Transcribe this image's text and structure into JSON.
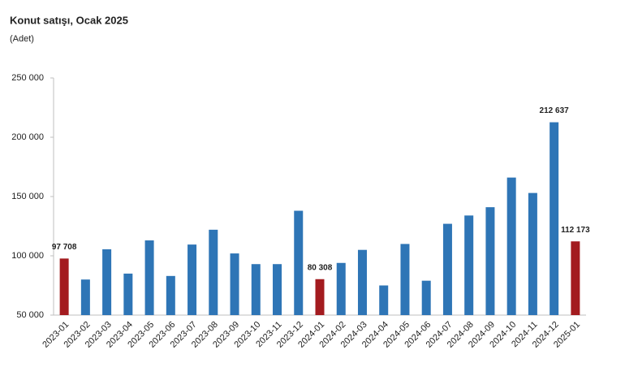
{
  "chart_data": {
    "type": "bar",
    "title": "Konut satışı, Ocak 2025",
    "subtitle": "(Adet)",
    "categories": [
      "2023-01",
      "2023-02",
      "2023-03",
      "2023-04",
      "2023-05",
      "2023-06",
      "2023-07",
      "2023-08",
      "2023-09",
      "2023-10",
      "2023-11",
      "2023-12",
      "2024-01",
      "2024-02",
      "2024-03",
      "2024-04",
      "2024-05",
      "2024-06",
      "2024-07",
      "2024-08",
      "2024-09",
      "2024-10",
      "2024-11",
      "2024-12",
      "2025-01"
    ],
    "values": [
      97708,
      80000,
      105500,
      85000,
      113000,
      83000,
      109500,
      122000,
      102000,
      93000,
      93000,
      138000,
      80308,
      94000,
      105000,
      75000,
      110000,
      79000,
      127000,
      134000,
      141000,
      166000,
      153000,
      212637,
      112173
    ],
    "value_labels": [
      "97 708",
      null,
      null,
      null,
      null,
      null,
      null,
      null,
      null,
      null,
      null,
      null,
      "80 308",
      null,
      null,
      null,
      null,
      null,
      null,
      null,
      null,
      null,
      null,
      "212 637",
      "112 173"
    ],
    "colors": [
      "#a31b1f",
      "#2e75b6",
      "#2e75b6",
      "#2e75b6",
      "#2e75b6",
      "#2e75b6",
      "#2e75b6",
      "#2e75b6",
      "#2e75b6",
      "#2e75b6",
      "#2e75b6",
      "#2e75b6",
      "#a31b1f",
      "#2e75b6",
      "#2e75b6",
      "#2e75b6",
      "#2e75b6",
      "#2e75b6",
      "#2e75b6",
      "#2e75b6",
      "#2e75b6",
      "#2e75b6",
      "#2e75b6",
      "#2e75b6",
      "#a31b1f"
    ],
    "ylim": [
      50000,
      250000
    ],
    "yticks": [
      {
        "value": 50000,
        "label": "50 000"
      },
      {
        "value": 100000,
        "label": "100 000"
      },
      {
        "value": 150000,
        "label": "150 000"
      },
      {
        "value": 200000,
        "label": "200 000"
      },
      {
        "value": 250000,
        "label": "250 000"
      }
    ],
    "grid": false
  }
}
